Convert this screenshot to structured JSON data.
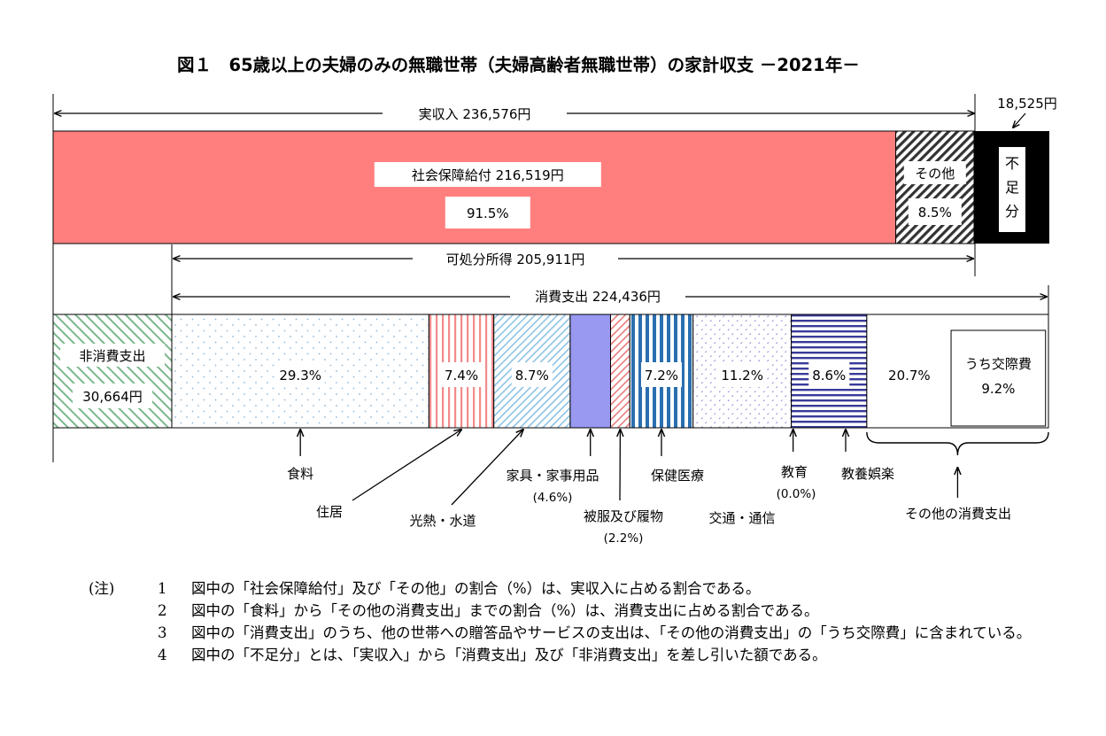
{
  "chart_data": {
    "type": "bar",
    "title": "図１　65歳以上の夫婦のみの無職世帯（夫婦高齢者無職世帯）の家計収支 －2021年－",
    "income": {
      "total_label": "実収入",
      "total_value": "236,576円",
      "shortfall_value": "18,525円",
      "segments": [
        {
          "name": "社会保障給付",
          "value_text": "216,519円",
          "percent": 91.5,
          "percent_label": "91.5%",
          "pattern": "solid-red"
        },
        {
          "name": "その他",
          "percent": 8.5,
          "percent_label": "8.5%",
          "pattern": "diag-dark"
        },
        {
          "name": "不足分",
          "vertical_text": [
            "不",
            "足",
            "分"
          ],
          "pattern": "black"
        }
      ]
    },
    "disposable_income": {
      "label": "可処分所得",
      "value": "205,911円"
    },
    "consumption": {
      "label": "消費支出",
      "value": "224,436円"
    },
    "expenditure": {
      "non_consumption": {
        "name": "非消費支出",
        "value": "30,664円"
      },
      "segments": [
        {
          "name": "食料",
          "percent": 29.3,
          "percent_label": "29.3%",
          "pattern": "dots-blue"
        },
        {
          "name": "住居",
          "percent": 7.4,
          "percent_label": "7.4%",
          "pattern": "vstripes-red"
        },
        {
          "name": "光熱・水道",
          "percent": 8.7,
          "percent_label": "8.7%",
          "pattern": "diag-lightblue"
        },
        {
          "name": "家具・家事用品",
          "percent": 4.6,
          "sub_label": "(4.6%)",
          "pattern": "solid-purple"
        },
        {
          "name": "被服及び履物",
          "percent": 2.2,
          "sub_label": "(2.2%)",
          "pattern": "diag-red"
        },
        {
          "name": "保健医療",
          "percent": 7.2,
          "percent_label": "7.2%",
          "pattern": "vstripes-blue"
        },
        {
          "name": "交通・通信",
          "percent": 11.2,
          "percent_label": "11.2%",
          "pattern": "dots-purple"
        },
        {
          "name": "教育",
          "percent": 0.0,
          "sub_label": "(0.0%)",
          "pattern": "none"
        },
        {
          "name": "教養娯楽",
          "percent": 8.6,
          "percent_label": "8.6%",
          "pattern": "hstripes-navy"
        },
        {
          "name": "その他の消費支出",
          "percent": 20.7,
          "percent_label": "20.7%",
          "pattern": "white",
          "inner": {
            "name": "うち交際費",
            "percent": 9.2,
            "percent_label": "9.2%"
          }
        }
      ]
    }
  },
  "notes": {
    "head": "(注)",
    "items": [
      {
        "num": "1",
        "text": "図中の「社会保障給付」及び「その他」の割合（%）は、実収入に占める割合である。"
      },
      {
        "num": "2",
        "text": "図中の「食料」から「その他の消費支出」までの割合（%）は、消費支出に占める割合である。"
      },
      {
        "num": "3",
        "text": "図中の「消費支出」のうち、他の世帯への贈答品やサービスの支出は、「その他の消費支出」の「うち交際費」に含まれている。"
      },
      {
        "num": "4",
        "text": "図中の「不足分」とは、「実収入」から「消費支出」及び「非消費支出」を差し引いた額である。"
      }
    ]
  }
}
